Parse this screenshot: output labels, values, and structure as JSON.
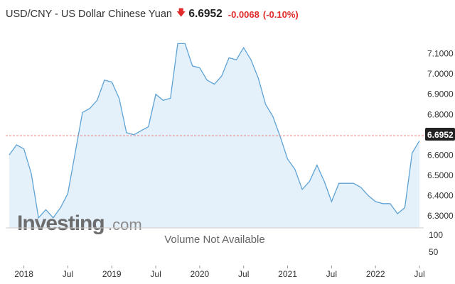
{
  "header": {
    "title": "USD/CNY - US Dollar Chinese Yuan",
    "arrow": "🡇",
    "price": "6.6952",
    "change": "-0.0068",
    "change_pct": "(-0.10%)"
  },
  "colors": {
    "line": "#5ea3d6",
    "area": "#e4f0fa",
    "down": "#e02b2b",
    "current_label_bg": "#222222",
    "reference_line": "#e88080"
  },
  "watermark": {
    "brand": "Investing",
    "domain": ".com"
  },
  "volume": {
    "message": "Volume Not Available",
    "ticks": [
      "100",
      "50"
    ]
  },
  "chart_data": {
    "type": "area",
    "title": "USD/CNY - US Dollar Chinese Yuan",
    "x_dates": [
      "2017-11",
      "2017-12",
      "2018-01",
      "2018-02",
      "2018-03",
      "2018-04",
      "2018-05",
      "2018-06",
      "2018-07",
      "2018-08",
      "2018-09",
      "2018-10",
      "2018-11",
      "2018-12",
      "2019-01",
      "2019-02",
      "2019-03",
      "2019-04",
      "2019-05",
      "2019-06",
      "2019-07",
      "2019-08",
      "2019-09",
      "2019-10",
      "2019-11",
      "2019-12",
      "2020-01",
      "2020-02",
      "2020-03",
      "2020-04",
      "2020-05",
      "2020-06",
      "2020-07",
      "2020-08",
      "2020-09",
      "2020-10",
      "2020-11",
      "2020-12",
      "2021-01",
      "2021-02",
      "2021-03",
      "2021-04",
      "2021-05",
      "2021-06",
      "2021-07",
      "2021-08",
      "2021-09",
      "2021-10",
      "2021-11",
      "2021-12",
      "2022-01",
      "2022-02",
      "2022-03",
      "2022-04",
      "2022-05",
      "2022-06",
      "2022-07"
    ],
    "values": [
      6.6,
      6.65,
      6.63,
      6.51,
      6.29,
      6.33,
      6.29,
      6.34,
      6.41,
      6.61,
      6.81,
      6.83,
      6.87,
      6.97,
      6.96,
      6.88,
      6.71,
      6.7,
      6.72,
      6.74,
      6.9,
      6.87,
      6.88,
      7.15,
      7.15,
      7.04,
      7.03,
      6.97,
      6.95,
      6.99,
      7.08,
      7.07,
      7.13,
      7.07,
      6.98,
      6.85,
      6.79,
      6.69,
      6.58,
      6.53,
      6.43,
      6.47,
      6.55,
      6.47,
      6.37,
      6.46,
      6.46,
      6.46,
      6.44,
      6.4,
      6.37,
      6.36,
      6.36,
      6.31,
      6.34,
      6.61,
      6.67
    ],
    "current_value": 6.6952,
    "y_ticks": [
      7.1,
      7.0,
      6.9,
      6.8,
      6.6,
      6.5,
      6.4,
      6.3
    ],
    "y_tick_labels": [
      "7.1000",
      "7.0000",
      "6.9000",
      "6.8000",
      "6.6000",
      "6.5000",
      "6.4000",
      "6.3000"
    ],
    "current_label": "6.6952",
    "x_tick_labels": [
      {
        "label": "2018",
        "date": "2018-01"
      },
      {
        "label": "Jul",
        "date": "2018-07"
      },
      {
        "label": "2019",
        "date": "2019-01"
      },
      {
        "label": "Jul",
        "date": "2019-07"
      },
      {
        "label": "2020",
        "date": "2020-01"
      },
      {
        "label": "Jul",
        "date": "2020-07"
      },
      {
        "label": "2021",
        "date": "2021-01"
      },
      {
        "label": "Jul",
        "date": "2021-07"
      },
      {
        "label": "2022",
        "date": "2022-01"
      },
      {
        "label": "Jul",
        "date": "2022-07"
      }
    ],
    "ylim": [
      6.24,
      7.19
    ],
    "grid": false,
    "legend": "none"
  }
}
